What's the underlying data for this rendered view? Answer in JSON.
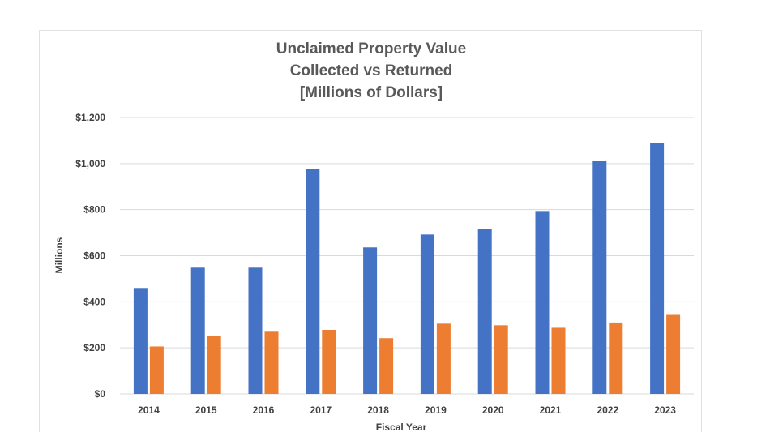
{
  "chart_data": {
    "type": "bar",
    "title": [
      "Unclaimed Property Value",
      "Collected vs Returned",
      "[Millions of Dollars]"
    ],
    "xlabel": "Fiscal Year",
    "ylabel": "Millions",
    "categories": [
      "2014",
      "2015",
      "2016",
      "2017",
      "2018",
      "2019",
      "2020",
      "2021",
      "2022",
      "2023"
    ],
    "ylim": [
      0,
      1200
    ],
    "yticks": [
      0,
      200,
      400,
      600,
      800,
      1000,
      1200
    ],
    "ytick_labels": [
      "$0",
      "$200",
      "$400",
      "$600",
      "$800",
      "$1,000",
      "$1,200"
    ],
    "grid": true,
    "legend": "none",
    "series": [
      {
        "color": "#4472C4",
        "values": [
          460,
          548,
          548,
          978,
          636,
          692,
          716,
          794,
          1010,
          1090
        ]
      },
      {
        "color": "#ED7D31",
        "values": [
          206,
          250,
          270,
          278,
          242,
          305,
          298,
          287,
          310,
          343
        ]
      }
    ]
  }
}
